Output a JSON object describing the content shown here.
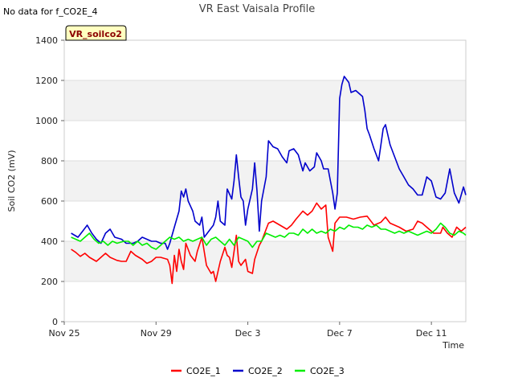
{
  "notice": "No data for f_CO2E_4",
  "badge": "VR_soilco2",
  "chart_data": {
    "type": "line",
    "title": "VR East Vaisala Profile",
    "xlabel": "Time",
    "ylabel": "Soil CO2 (mV)",
    "xlim": [
      0,
      17.5
    ],
    "ylim": [
      0,
      1400
    ],
    "x_ticks": [
      {
        "value": 0,
        "label": "Nov 25"
      },
      {
        "value": 4,
        "label": "Nov 29"
      },
      {
        "value": 8,
        "label": "Dec 3"
      },
      {
        "value": 12,
        "label": "Dec 7"
      },
      {
        "value": 16,
        "label": "Dec 11"
      }
    ],
    "y_ticks": [
      0,
      200,
      400,
      600,
      800,
      1000,
      1200,
      1400
    ],
    "grid": true,
    "legend_position": "bottom",
    "series": [
      {
        "name": "CO2E_1",
        "color": "#ff0000",
        "points": [
          [
            0.3,
            360
          ],
          [
            0.5,
            345
          ],
          [
            0.7,
            325
          ],
          [
            0.9,
            340
          ],
          [
            1.1,
            320
          ],
          [
            1.4,
            300
          ],
          [
            1.6,
            320
          ],
          [
            1.8,
            340
          ],
          [
            2.0,
            320
          ],
          [
            2.3,
            305
          ],
          [
            2.5,
            300
          ],
          [
            2.7,
            300
          ],
          [
            2.9,
            350
          ],
          [
            3.1,
            330
          ],
          [
            3.4,
            310
          ],
          [
            3.6,
            290
          ],
          [
            3.8,
            300
          ],
          [
            4.0,
            320
          ],
          [
            4.2,
            320
          ],
          [
            4.5,
            310
          ],
          [
            4.6,
            280
          ],
          [
            4.7,
            190
          ],
          [
            4.8,
            330
          ],
          [
            4.9,
            250
          ],
          [
            5.0,
            360
          ],
          [
            5.1,
            300
          ],
          [
            5.2,
            260
          ],
          [
            5.3,
            390
          ],
          [
            5.5,
            330
          ],
          [
            5.7,
            300
          ],
          [
            5.8,
            350
          ],
          [
            6.0,
            420
          ],
          [
            6.2,
            280
          ],
          [
            6.4,
            240
          ],
          [
            6.5,
            250
          ],
          [
            6.6,
            200
          ],
          [
            6.8,
            300
          ],
          [
            7.0,
            370
          ],
          [
            7.1,
            330
          ],
          [
            7.2,
            320
          ],
          [
            7.3,
            270
          ],
          [
            7.5,
            430
          ],
          [
            7.6,
            300
          ],
          [
            7.7,
            280
          ],
          [
            7.9,
            310
          ],
          [
            8.0,
            250
          ],
          [
            8.2,
            240
          ],
          [
            8.3,
            310
          ],
          [
            8.5,
            380
          ],
          [
            8.6,
            400
          ],
          [
            8.8,
            460
          ],
          [
            8.9,
            490
          ],
          [
            9.1,
            500
          ],
          [
            9.4,
            480
          ],
          [
            9.7,
            460
          ],
          [
            9.9,
            480
          ],
          [
            10.1,
            510
          ],
          [
            10.4,
            550
          ],
          [
            10.6,
            530
          ],
          [
            10.8,
            550
          ],
          [
            11.0,
            590
          ],
          [
            11.2,
            560
          ],
          [
            11.4,
            580
          ],
          [
            11.5,
            420
          ],
          [
            11.7,
            350
          ],
          [
            11.8,
            490
          ],
          [
            12.0,
            520
          ],
          [
            12.3,
            520
          ],
          [
            12.6,
            510
          ],
          [
            12.9,
            520
          ],
          [
            13.2,
            525
          ],
          [
            13.5,
            480
          ],
          [
            13.8,
            495
          ],
          [
            14.0,
            520
          ],
          [
            14.2,
            490
          ],
          [
            14.4,
            480
          ],
          [
            14.6,
            470
          ],
          [
            14.9,
            450
          ],
          [
            15.2,
            460
          ],
          [
            15.4,
            500
          ],
          [
            15.6,
            490
          ],
          [
            15.8,
            470
          ],
          [
            16.1,
            440
          ],
          [
            16.4,
            440
          ],
          [
            16.5,
            470
          ],
          [
            16.7,
            440
          ],
          [
            16.9,
            420
          ],
          [
            17.1,
            470
          ],
          [
            17.3,
            450
          ],
          [
            17.5,
            470
          ]
        ]
      },
      {
        "name": "CO2E_2",
        "color": "#0000cc",
        "points": [
          [
            0.3,
            440
          ],
          [
            0.6,
            420
          ],
          [
            0.8,
            450
          ],
          [
            1.0,
            480
          ],
          [
            1.2,
            440
          ],
          [
            1.4,
            410
          ],
          [
            1.6,
            390
          ],
          [
            1.8,
            440
          ],
          [
            2.0,
            460
          ],
          [
            2.2,
            420
          ],
          [
            2.5,
            410
          ],
          [
            2.7,
            390
          ],
          [
            3.0,
            390
          ],
          [
            3.2,
            400
          ],
          [
            3.4,
            420
          ],
          [
            3.6,
            410
          ],
          [
            3.8,
            400
          ],
          [
            4.0,
            400
          ],
          [
            4.2,
            390
          ],
          [
            4.4,
            390
          ],
          [
            4.5,
            360
          ],
          [
            4.6,
            390
          ],
          [
            4.8,
            470
          ],
          [
            5.0,
            550
          ],
          [
            5.1,
            650
          ],
          [
            5.2,
            620
          ],
          [
            5.3,
            660
          ],
          [
            5.4,
            600
          ],
          [
            5.6,
            550
          ],
          [
            5.7,
            500
          ],
          [
            5.9,
            480
          ],
          [
            6.0,
            520
          ],
          [
            6.1,
            420
          ],
          [
            6.3,
            450
          ],
          [
            6.5,
            480
          ],
          [
            6.6,
            520
          ],
          [
            6.7,
            600
          ],
          [
            6.8,
            500
          ],
          [
            7.0,
            480
          ],
          [
            7.1,
            660
          ],
          [
            7.3,
            610
          ],
          [
            7.4,
            700
          ],
          [
            7.5,
            830
          ],
          [
            7.6,
            720
          ],
          [
            7.7,
            620
          ],
          [
            7.8,
            600
          ],
          [
            7.9,
            480
          ],
          [
            8.0,
            560
          ],
          [
            8.2,
            660
          ],
          [
            8.3,
            790
          ],
          [
            8.4,
            650
          ],
          [
            8.5,
            450
          ],
          [
            8.6,
            600
          ],
          [
            8.8,
            720
          ],
          [
            8.9,
            900
          ],
          [
            9.1,
            870
          ],
          [
            9.3,
            860
          ],
          [
            9.5,
            820
          ],
          [
            9.7,
            790
          ],
          [
            9.8,
            850
          ],
          [
            10.0,
            860
          ],
          [
            10.2,
            830
          ],
          [
            10.4,
            750
          ],
          [
            10.5,
            790
          ],
          [
            10.7,
            750
          ],
          [
            10.9,
            770
          ],
          [
            11.0,
            840
          ],
          [
            11.2,
            800
          ],
          [
            11.3,
            760
          ],
          [
            11.5,
            760
          ],
          [
            11.6,
            700
          ],
          [
            11.7,
            640
          ],
          [
            11.8,
            560
          ],
          [
            11.9,
            640
          ],
          [
            12.0,
            1110
          ],
          [
            12.1,
            1180
          ],
          [
            12.2,
            1220
          ],
          [
            12.4,
            1190
          ],
          [
            12.5,
            1140
          ],
          [
            12.7,
            1150
          ],
          [
            12.8,
            1140
          ],
          [
            13.0,
            1120
          ],
          [
            13.1,
            1050
          ],
          [
            13.2,
            960
          ],
          [
            13.3,
            930
          ],
          [
            13.5,
            860
          ],
          [
            13.7,
            800
          ],
          [
            13.8,
            880
          ],
          [
            13.9,
            960
          ],
          [
            14.0,
            980
          ],
          [
            14.2,
            880
          ],
          [
            14.4,
            820
          ],
          [
            14.6,
            760
          ],
          [
            14.8,
            720
          ],
          [
            15.0,
            680
          ],
          [
            15.2,
            660
          ],
          [
            15.4,
            630
          ],
          [
            15.6,
            630
          ],
          [
            15.8,
            720
          ],
          [
            16.0,
            700
          ],
          [
            16.2,
            620
          ],
          [
            16.4,
            610
          ],
          [
            16.6,
            640
          ],
          [
            16.8,
            760
          ],
          [
            17.0,
            640
          ],
          [
            17.2,
            590
          ],
          [
            17.4,
            670
          ],
          [
            17.5,
            630
          ]
        ]
      },
      {
        "name": "CO2E_3",
        "color": "#00ee00",
        "points": [
          [
            0.3,
            420
          ],
          [
            0.5,
            410
          ],
          [
            0.7,
            400
          ],
          [
            0.9,
            420
          ],
          [
            1.1,
            440
          ],
          [
            1.3,
            410
          ],
          [
            1.5,
            390
          ],
          [
            1.7,
            400
          ],
          [
            1.9,
            380
          ],
          [
            2.1,
            400
          ],
          [
            2.3,
            390
          ],
          [
            2.6,
            400
          ],
          [
            2.8,
            400
          ],
          [
            3.0,
            380
          ],
          [
            3.2,
            400
          ],
          [
            3.4,
            380
          ],
          [
            3.6,
            390
          ],
          [
            3.8,
            370
          ],
          [
            4.0,
            360
          ],
          [
            4.2,
            380
          ],
          [
            4.4,
            400
          ],
          [
            4.6,
            420
          ],
          [
            4.8,
            410
          ],
          [
            5.0,
            420
          ],
          [
            5.2,
            400
          ],
          [
            5.4,
            410
          ],
          [
            5.6,
            400
          ],
          [
            5.8,
            410
          ],
          [
            6.0,
            420
          ],
          [
            6.2,
            380
          ],
          [
            6.4,
            410
          ],
          [
            6.6,
            420
          ],
          [
            6.8,
            400
          ],
          [
            7.0,
            380
          ],
          [
            7.2,
            410
          ],
          [
            7.4,
            380
          ],
          [
            7.6,
            420
          ],
          [
            7.8,
            410
          ],
          [
            8.0,
            400
          ],
          [
            8.2,
            370
          ],
          [
            8.4,
            400
          ],
          [
            8.6,
            400
          ],
          [
            8.8,
            440
          ],
          [
            9.0,
            430
          ],
          [
            9.2,
            420
          ],
          [
            9.4,
            430
          ],
          [
            9.6,
            420
          ],
          [
            9.8,
            440
          ],
          [
            10.0,
            440
          ],
          [
            10.2,
            430
          ],
          [
            10.4,
            460
          ],
          [
            10.6,
            440
          ],
          [
            10.8,
            460
          ],
          [
            11.0,
            440
          ],
          [
            11.2,
            450
          ],
          [
            11.4,
            440
          ],
          [
            11.6,
            460
          ],
          [
            11.8,
            450
          ],
          [
            12.0,
            470
          ],
          [
            12.2,
            460
          ],
          [
            12.4,
            480
          ],
          [
            12.6,
            470
          ],
          [
            12.8,
            470
          ],
          [
            13.0,
            460
          ],
          [
            13.2,
            480
          ],
          [
            13.4,
            470
          ],
          [
            13.6,
            480
          ],
          [
            13.8,
            460
          ],
          [
            14.0,
            460
          ],
          [
            14.2,
            450
          ],
          [
            14.4,
            440
          ],
          [
            14.6,
            450
          ],
          [
            14.8,
            440
          ],
          [
            15.0,
            450
          ],
          [
            15.2,
            440
          ],
          [
            15.4,
            430
          ],
          [
            15.6,
            440
          ],
          [
            15.8,
            450
          ],
          [
            16.0,
            440
          ],
          [
            16.2,
            460
          ],
          [
            16.4,
            490
          ],
          [
            16.6,
            470
          ],
          [
            16.8,
            440
          ],
          [
            17.0,
            430
          ],
          [
            17.2,
            450
          ],
          [
            17.4,
            440
          ],
          [
            17.5,
            430
          ]
        ]
      }
    ]
  }
}
